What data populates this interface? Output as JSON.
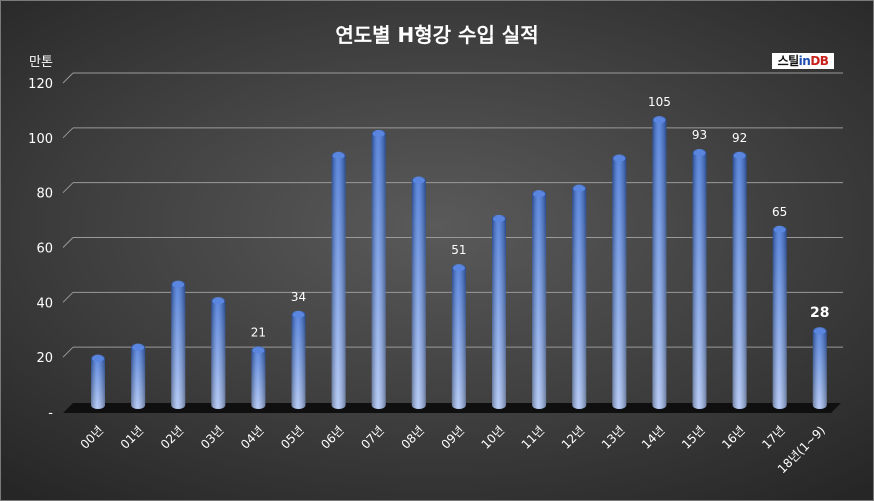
{
  "title": "연도별 H형강 수입 실적",
  "unit": "만톤",
  "brand": {
    "part1": "스틸",
    "part2": "in",
    "part3": "DB"
  },
  "colors": {
    "bar_top": "#3a6fd8",
    "bar_bottom": "#a9c2f5",
    "text": "#ffffff"
  },
  "chart_data": {
    "type": "bar",
    "categories": [
      "00년",
      "01년",
      "02년",
      "03년",
      "04년",
      "05년",
      "06년",
      "07년",
      "08년",
      "09년",
      "10년",
      "11년",
      "12년",
      "13년",
      "14년",
      "15년",
      "16년",
      "17년",
      "18년(1~9)"
    ],
    "values": [
      18,
      22,
      45,
      39,
      21,
      34,
      92,
      100,
      83,
      51,
      69,
      78,
      80,
      91,
      105,
      93,
      92,
      65,
      28
    ],
    "data_labels": [
      "",
      "",
      "",
      "",
      "21",
      "34",
      "",
      "",
      "",
      "51",
      "",
      "",
      "",
      "",
      "105",
      "93",
      "92",
      "65",
      "28"
    ],
    "yticks": [
      "-",
      "20",
      "40",
      "60",
      "80",
      "100",
      "120"
    ],
    "ylim": [
      0,
      120
    ],
    "ylabel": "만톤",
    "grid": true
  }
}
